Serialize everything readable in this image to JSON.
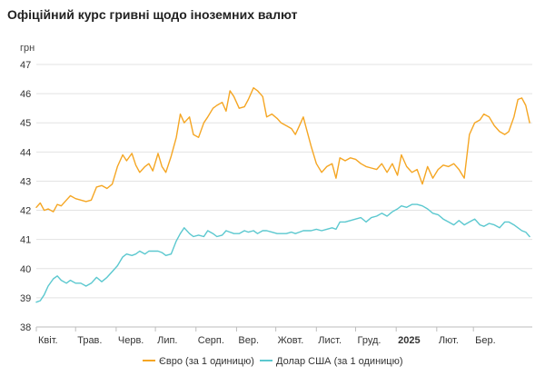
{
  "title": "Офіційний курс гривні щодо іноземних валют",
  "chart_data": {
    "type": "line",
    "title": "Офіційний курс гривні щодо іноземних валют",
    "ylabel": "грн",
    "ylim": [
      38,
      47
    ],
    "yticks": [
      38,
      39,
      40,
      41,
      42,
      43,
      44,
      45,
      46,
      47
    ],
    "xlim": [
      "2024-04-01",
      "2025-04-15"
    ],
    "x_ticks": [
      {
        "label": "Квіт.",
        "date": "2024-04-01",
        "bold": false
      },
      {
        "label": "Трав.",
        "date": "2024-05-01",
        "bold": false
      },
      {
        "label": "Черв.",
        "date": "2024-06-01",
        "bold": false
      },
      {
        "label": "Лип.",
        "date": "2024-07-01",
        "bold": false
      },
      {
        "label": "Серп.",
        "date": "2024-08-01",
        "bold": false
      },
      {
        "label": "Вер.",
        "date": "2024-09-01",
        "bold": false
      },
      {
        "label": "Жовт.",
        "date": "2024-10-01",
        "bold": false
      },
      {
        "label": "Лист.",
        "date": "2024-11-01",
        "bold": false
      },
      {
        "label": "Груд.",
        "date": "2024-12-01",
        "bold": false
      },
      {
        "label": "2025",
        "date": "2025-01-01",
        "bold": true
      },
      {
        "label": "Лют.",
        "date": "2025-02-01",
        "bold": false
      },
      {
        "label": "Бер.",
        "date": "2025-03-01",
        "bold": false
      }
    ],
    "grid": "horizontal",
    "legend_position": "bottom",
    "series": [
      {
        "name": "Євро (за 1 одиницю)",
        "color": "#F5A623",
        "points": [
          [
            "2024-04-01",
            42.1
          ],
          [
            "2024-04-04",
            42.25
          ],
          [
            "2024-04-07",
            42.0
          ],
          [
            "2024-04-10",
            42.05
          ],
          [
            "2024-04-14",
            41.95
          ],
          [
            "2024-04-17",
            42.2
          ],
          [
            "2024-04-20",
            42.15
          ],
          [
            "2024-04-24",
            42.35
          ],
          [
            "2024-04-27",
            42.5
          ],
          [
            "2024-05-01",
            42.4
          ],
          [
            "2024-05-05",
            42.35
          ],
          [
            "2024-05-09",
            42.3
          ],
          [
            "2024-05-13",
            42.35
          ],
          [
            "2024-05-17",
            42.8
          ],
          [
            "2024-05-21",
            42.85
          ],
          [
            "2024-05-25",
            42.75
          ],
          [
            "2024-05-29",
            42.9
          ],
          [
            "2024-06-02",
            43.5
          ],
          [
            "2024-06-06",
            43.9
          ],
          [
            "2024-06-09",
            43.7
          ],
          [
            "2024-06-13",
            43.95
          ],
          [
            "2024-06-16",
            43.55
          ],
          [
            "2024-06-19",
            43.3
          ],
          [
            "2024-06-23",
            43.5
          ],
          [
            "2024-06-26",
            43.6
          ],
          [
            "2024-06-29",
            43.35
          ],
          [
            "2024-07-03",
            43.95
          ],
          [
            "2024-07-06",
            43.5
          ],
          [
            "2024-07-09",
            43.3
          ],
          [
            "2024-07-13",
            43.85
          ],
          [
            "2024-07-17",
            44.5
          ],
          [
            "2024-07-20",
            45.3
          ],
          [
            "2024-07-23",
            45.0
          ],
          [
            "2024-07-27",
            45.2
          ],
          [
            "2024-07-30",
            44.6
          ],
          [
            "2024-08-03",
            44.5
          ],
          [
            "2024-08-07",
            45.0
          ],
          [
            "2024-08-10",
            45.2
          ],
          [
            "2024-08-14",
            45.5
          ],
          [
            "2024-08-17",
            45.6
          ],
          [
            "2024-08-21",
            45.7
          ],
          [
            "2024-08-24",
            45.4
          ],
          [
            "2024-08-27",
            46.1
          ],
          [
            "2024-08-30",
            45.9
          ],
          [
            "2024-09-03",
            45.5
          ],
          [
            "2024-09-07",
            45.55
          ],
          [
            "2024-09-10",
            45.8
          ],
          [
            "2024-09-14",
            46.2
          ],
          [
            "2024-09-17",
            46.1
          ],
          [
            "2024-09-21",
            45.9
          ],
          [
            "2024-09-24",
            45.2
          ],
          [
            "2024-09-28",
            45.3
          ],
          [
            "2024-10-02",
            45.15
          ],
          [
            "2024-10-05",
            45.0
          ],
          [
            "2024-10-09",
            44.9
          ],
          [
            "2024-10-13",
            44.8
          ],
          [
            "2024-10-16",
            44.6
          ],
          [
            "2024-10-19",
            44.9
          ],
          [
            "2024-10-22",
            45.2
          ],
          [
            "2024-10-25",
            44.7
          ],
          [
            "2024-10-28",
            44.2
          ],
          [
            "2024-11-01",
            43.6
          ],
          [
            "2024-11-05",
            43.3
          ],
          [
            "2024-11-09",
            43.5
          ],
          [
            "2024-11-13",
            43.6
          ],
          [
            "2024-11-16",
            43.1
          ],
          [
            "2024-11-19",
            43.8
          ],
          [
            "2024-11-23",
            43.7
          ],
          [
            "2024-11-27",
            43.8
          ],
          [
            "2024-12-01",
            43.75
          ],
          [
            "2024-12-05",
            43.6
          ],
          [
            "2024-12-09",
            43.5
          ],
          [
            "2024-12-13",
            43.45
          ],
          [
            "2024-12-17",
            43.4
          ],
          [
            "2024-12-21",
            43.6
          ],
          [
            "2024-12-25",
            43.3
          ],
          [
            "2024-12-29",
            43.6
          ],
          [
            "2025-01-02",
            43.2
          ],
          [
            "2025-01-05",
            43.9
          ],
          [
            "2025-01-09",
            43.5
          ],
          [
            "2025-01-13",
            43.3
          ],
          [
            "2025-01-17",
            43.4
          ],
          [
            "2025-01-21",
            42.9
          ],
          [
            "2025-01-25",
            43.5
          ],
          [
            "2025-01-29",
            43.1
          ],
          [
            "2025-02-02",
            43.4
          ],
          [
            "2025-02-06",
            43.55
          ],
          [
            "2025-02-10",
            43.5
          ],
          [
            "2025-02-14",
            43.6
          ],
          [
            "2025-02-18",
            43.4
          ],
          [
            "2025-02-22",
            43.1
          ],
          [
            "2025-02-26",
            44.6
          ],
          [
            "2025-03-02",
            45.0
          ],
          [
            "2025-03-06",
            45.1
          ],
          [
            "2025-03-09",
            45.3
          ],
          [
            "2025-03-13",
            45.2
          ],
          [
            "2025-03-17",
            44.9
          ],
          [
            "2025-03-21",
            44.7
          ],
          [
            "2025-03-25",
            44.6
          ],
          [
            "2025-03-28",
            44.7
          ],
          [
            "2025-04-01",
            45.2
          ],
          [
            "2025-04-04",
            45.8
          ],
          [
            "2025-04-07",
            45.85
          ],
          [
            "2025-04-10",
            45.6
          ],
          [
            "2025-04-13",
            45.0
          ]
        ]
      },
      {
        "name": "Долар США (за 1 одиницю)",
        "color": "#5BC8CF",
        "points": [
          [
            "2024-04-01",
            38.85
          ],
          [
            "2024-04-04",
            38.9
          ],
          [
            "2024-04-07",
            39.1
          ],
          [
            "2024-04-10",
            39.4
          ],
          [
            "2024-04-14",
            39.65
          ],
          [
            "2024-04-17",
            39.75
          ],
          [
            "2024-04-20",
            39.6
          ],
          [
            "2024-04-24",
            39.5
          ],
          [
            "2024-04-27",
            39.6
          ],
          [
            "2024-05-01",
            39.5
          ],
          [
            "2024-05-05",
            39.5
          ],
          [
            "2024-05-09",
            39.4
          ],
          [
            "2024-05-13",
            39.5
          ],
          [
            "2024-05-17",
            39.7
          ],
          [
            "2024-05-21",
            39.55
          ],
          [
            "2024-05-25",
            39.7
          ],
          [
            "2024-05-29",
            39.9
          ],
          [
            "2024-06-02",
            40.1
          ],
          [
            "2024-06-06",
            40.4
          ],
          [
            "2024-06-09",
            40.5
          ],
          [
            "2024-06-13",
            40.45
          ],
          [
            "2024-06-16",
            40.5
          ],
          [
            "2024-06-19",
            40.6
          ],
          [
            "2024-06-23",
            40.5
          ],
          [
            "2024-06-26",
            40.6
          ],
          [
            "2024-06-29",
            40.6
          ],
          [
            "2024-07-03",
            40.6
          ],
          [
            "2024-07-06",
            40.55
          ],
          [
            "2024-07-09",
            40.45
          ],
          [
            "2024-07-13",
            40.5
          ],
          [
            "2024-07-17",
            40.95
          ],
          [
            "2024-07-20",
            41.2
          ],
          [
            "2024-07-23",
            41.4
          ],
          [
            "2024-07-27",
            41.2
          ],
          [
            "2024-07-30",
            41.1
          ],
          [
            "2024-08-03",
            41.15
          ],
          [
            "2024-08-07",
            41.1
          ],
          [
            "2024-08-10",
            41.3
          ],
          [
            "2024-08-14",
            41.2
          ],
          [
            "2024-08-17",
            41.1
          ],
          [
            "2024-08-21",
            41.15
          ],
          [
            "2024-08-24",
            41.3
          ],
          [
            "2024-08-27",
            41.25
          ],
          [
            "2024-08-30",
            41.2
          ],
          [
            "2024-09-03",
            41.2
          ],
          [
            "2024-09-07",
            41.3
          ],
          [
            "2024-09-10",
            41.25
          ],
          [
            "2024-09-14",
            41.3
          ],
          [
            "2024-09-17",
            41.2
          ],
          [
            "2024-09-21",
            41.3
          ],
          [
            "2024-09-24",
            41.3
          ],
          [
            "2024-09-28",
            41.25
          ],
          [
            "2024-10-02",
            41.2
          ],
          [
            "2024-10-05",
            41.2
          ],
          [
            "2024-10-09",
            41.2
          ],
          [
            "2024-10-13",
            41.25
          ],
          [
            "2024-10-16",
            41.2
          ],
          [
            "2024-10-19",
            41.25
          ],
          [
            "2024-10-22",
            41.3
          ],
          [
            "2024-10-25",
            41.3
          ],
          [
            "2024-10-28",
            41.3
          ],
          [
            "2024-11-01",
            41.35
          ],
          [
            "2024-11-05",
            41.3
          ],
          [
            "2024-11-09",
            41.35
          ],
          [
            "2024-11-13",
            41.4
          ],
          [
            "2024-11-16",
            41.35
          ],
          [
            "2024-11-19",
            41.6
          ],
          [
            "2024-11-23",
            41.6
          ],
          [
            "2024-11-27",
            41.65
          ],
          [
            "2024-12-01",
            41.7
          ],
          [
            "2024-12-05",
            41.75
          ],
          [
            "2024-12-09",
            41.6
          ],
          [
            "2024-12-13",
            41.75
          ],
          [
            "2024-12-17",
            41.8
          ],
          [
            "2024-12-21",
            41.9
          ],
          [
            "2024-12-25",
            41.8
          ],
          [
            "2024-12-29",
            41.95
          ],
          [
            "2025-01-02",
            42.05
          ],
          [
            "2025-01-05",
            42.15
          ],
          [
            "2025-01-09",
            42.1
          ],
          [
            "2025-01-13",
            42.2
          ],
          [
            "2025-01-17",
            42.2
          ],
          [
            "2025-01-21",
            42.15
          ],
          [
            "2025-01-25",
            42.05
          ],
          [
            "2025-01-29",
            41.9
          ],
          [
            "2025-02-02",
            41.85
          ],
          [
            "2025-02-06",
            41.7
          ],
          [
            "2025-02-10",
            41.6
          ],
          [
            "2025-02-14",
            41.5
          ],
          [
            "2025-02-18",
            41.65
          ],
          [
            "2025-02-22",
            41.5
          ],
          [
            "2025-02-26",
            41.6
          ],
          [
            "2025-03-02",
            41.7
          ],
          [
            "2025-03-06",
            41.5
          ],
          [
            "2025-03-09",
            41.45
          ],
          [
            "2025-03-13",
            41.55
          ],
          [
            "2025-03-17",
            41.5
          ],
          [
            "2025-03-21",
            41.4
          ],
          [
            "2025-03-25",
            41.6
          ],
          [
            "2025-03-28",
            41.6
          ],
          [
            "2025-04-01",
            41.5
          ],
          [
            "2025-04-04",
            41.4
          ],
          [
            "2025-04-07",
            41.3
          ],
          [
            "2025-04-10",
            41.25
          ],
          [
            "2025-04-13",
            41.1
          ]
        ]
      }
    ]
  }
}
